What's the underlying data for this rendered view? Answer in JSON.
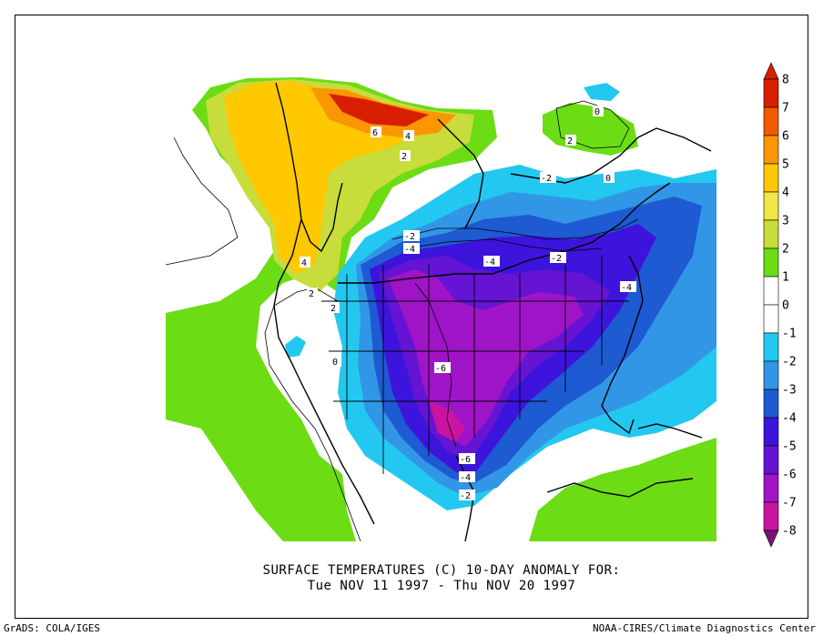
{
  "title": {
    "line1": "SURFACE TEMPERATURES (C)   10-DAY ANOMALY FOR:",
    "line2": "Tue NOV 11 1997 - Thu NOV 20 1997"
  },
  "footer": {
    "left": "GrADS: COLA/IGES",
    "right": "NOAA-CIRES/Climate Diagnostics Center"
  },
  "colorbar": {
    "labels": [
      "8",
      "7",
      "6",
      "5",
      "4",
      "3",
      "2",
      "1",
      "0",
      "-1",
      "-2",
      "-3",
      "-4",
      "-5",
      "-6",
      "-7",
      "-8"
    ],
    "colors": [
      "#d81e00",
      "#f05a00",
      "#fa9600",
      "#ffc800",
      "#f0e646",
      "#c8dc3c",
      "#6cdc14",
      "#ffffff",
      "#ffffff",
      "#23c8f0",
      "#3296e6",
      "#1e5ad2",
      "#3c14dc",
      "#6414d2",
      "#a014c8",
      "#c814a0",
      "#781478"
    ]
  },
  "contour_labels": [
    "6",
    "4",
    "2",
    "2",
    "0",
    "0",
    "2",
    "4",
    "2",
    "0",
    "-2",
    "-2",
    "-4",
    "-4",
    "-2",
    "-4",
    "-6",
    "-6",
    "-4",
    "-2"
  ]
}
